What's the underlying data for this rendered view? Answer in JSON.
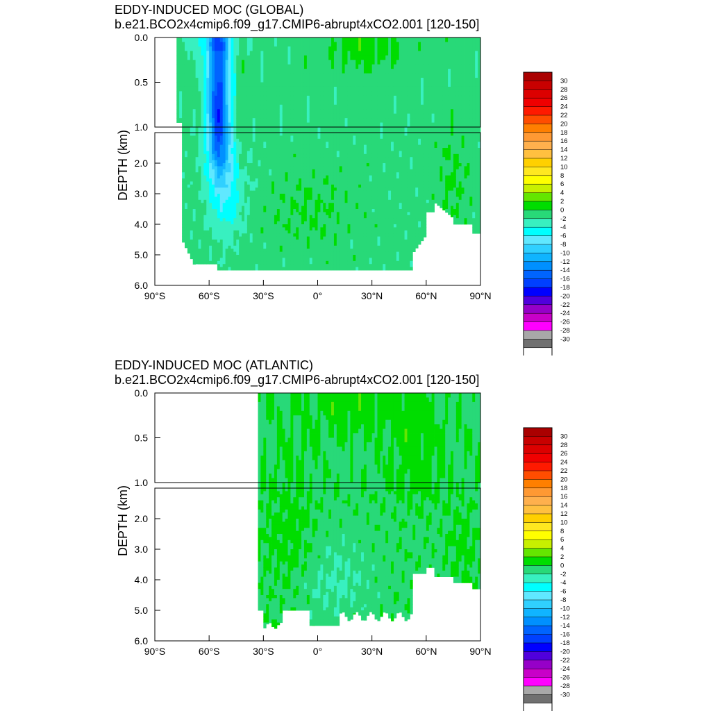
{
  "chart_data": [
    {
      "type": "heatmap",
      "title": "EDDY-INDUCED MOC (GLOBAL)",
      "subtitle": "b.e21.BCO2x4cmip6.f09_g17.CMIP6-abrupt4xCO2.001 [120-150]",
      "ylabel": "DEPTH (km)",
      "xlabel": "",
      "x_ticks": [
        "90°S",
        "60°S",
        "30°S",
        "0°",
        "30°N",
        "60°N",
        "90°N"
      ],
      "x_tick_values": [
        -90,
        -60,
        -30,
        0,
        30,
        60,
        90
      ],
      "y_ticks_upper": [
        "0.0",
        "0.5",
        "1.0"
      ],
      "y_tick_values_upper": [
        0,
        0.5,
        1.0
      ],
      "y_ticks_lower": [
        "2.0",
        "3.0",
        "4.0",
        "5.0",
        "6.0"
      ],
      "y_tick_values_lower": [
        2,
        3,
        4,
        5,
        6
      ],
      "xlim": [
        -90,
        90
      ],
      "ylim_upper": [
        0,
        1.0
      ],
      "ylim_lower": [
        1.0,
        6.0
      ],
      "value_range": [
        -30,
        30
      ],
      "data_extent": {
        "lat_min": -78,
        "lat_max": 90,
        "max_depth_km": 5.5
      },
      "main_feature": {
        "type": "minimum",
        "lat": -55,
        "depth_km": 0.6,
        "value": -16
      },
      "summary": "Strong negative (blue) cell centered near 60S between 0 and 4 km depth; values near 0 to -2 elsewhere; small positive (green) regions near the surface north of the equator and in the interior."
    },
    {
      "type": "heatmap",
      "title": "EDDY-INDUCED MOC (ATLANTIC)",
      "subtitle": "b.e21.BCO2x4cmip6.f09_g17.CMIP6-abrupt4xCO2.001 [120-150]",
      "ylabel": "DEPTH (km)",
      "xlabel": "",
      "x_ticks": [
        "90°S",
        "60°S",
        "30°S",
        "0°",
        "30°N",
        "60°N",
        "90°N"
      ],
      "x_tick_values": [
        -90,
        -60,
        -30,
        0,
        30,
        60,
        90
      ],
      "y_ticks_upper": [
        "0.0",
        "0.5",
        "1.0"
      ],
      "y_tick_values_upper": [
        0,
        0.5,
        1.0
      ],
      "y_ticks_lower": [
        "2.0",
        "3.0",
        "4.0",
        "5.0",
        "6.0"
      ],
      "y_tick_values_lower": [
        2,
        3,
        4,
        5,
        6
      ],
      "xlim": [
        -90,
        90
      ],
      "ylim_upper": [
        0,
        1.0
      ],
      "ylim_lower": [
        1.0,
        6.0
      ],
      "value_range": [
        -30,
        30
      ],
      "data_extent": {
        "lat_min": -33,
        "lat_max": 90,
        "max_depth_km": 5.5
      },
      "summary": "Values mostly between -2 and +2 across the Atlantic basin from about 33S to 90N; positive (green) near the surface and in mid-depths north of 10N."
    }
  ],
  "colorbar": {
    "labels": [
      "30",
      "28",
      "26",
      "24",
      "22",
      "20",
      "18",
      "16",
      "14",
      "12",
      "10",
      "8",
      "6",
      "4",
      "2",
      "0",
      "-2",
      "-4",
      "-6",
      "-8",
      "-10",
      "-12",
      "-14",
      "-16",
      "-18",
      "-20",
      "-22",
      "-24",
      "-26",
      "-28",
      "-30"
    ],
    "colors": [
      "#aa0000",
      "#c80000",
      "#dc0000",
      "#f00000",
      "#ff1a00",
      "#ff4d00",
      "#ff7f00",
      "#ff9933",
      "#ffb04d",
      "#ffc040",
      "#ffd000",
      "#ffe820",
      "#ffff00",
      "#c8f000",
      "#64e600",
      "#00dd00",
      "#28d978",
      "#38f0c0",
      "#00ffff",
      "#60e8ff",
      "#30d0ff",
      "#10b4ff",
      "#0090ff",
      "#0064ff",
      "#0040ff",
      "#0000ff",
      "#5000dc",
      "#9600c8",
      "#c800c8",
      "#ff00ff",
      "#a8a8a8",
      "#707070",
      "#ffffff"
    ]
  }
}
